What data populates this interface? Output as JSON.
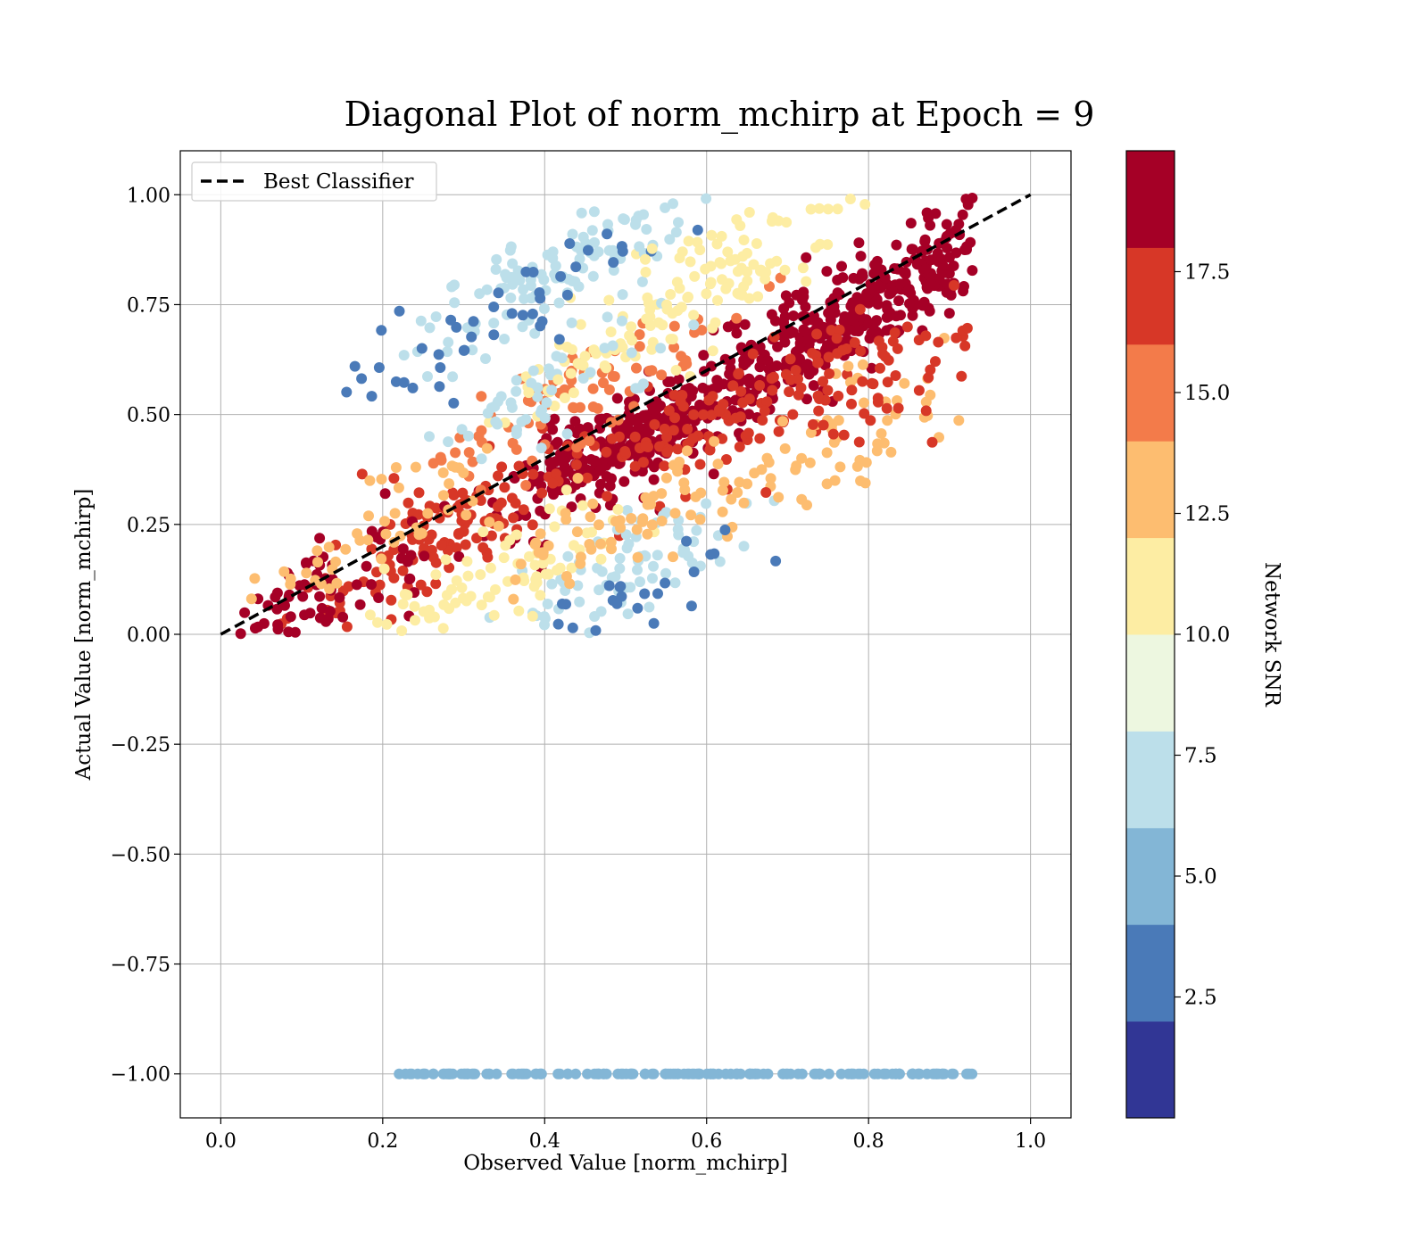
{
  "chart_data": {
    "type": "scatter",
    "title": "Diagonal Plot of norm_mchirp at Epoch = 9",
    "xlabel": "Observed Value [norm_mchirp]",
    "ylabel": "Actual Value [norm_mchirp]",
    "xlim": [
      -0.05,
      1.05
    ],
    "ylim": [
      -1.1,
      1.1
    ],
    "x_ticks": [
      "0.0",
      "0.2",
      "0.4",
      "0.6",
      "0.8",
      "1.0"
    ],
    "x_tick_values": [
      0.0,
      0.2,
      0.4,
      0.6,
      0.8,
      1.0
    ],
    "y_ticks": [
      "−1.00",
      "−0.75",
      "−0.50",
      "−0.25",
      "0.00",
      "0.25",
      "0.50",
      "0.75",
      "1.00"
    ],
    "y_tick_values": [
      -1.0,
      -0.75,
      -0.5,
      -0.25,
      0.0,
      0.25,
      0.5,
      0.75,
      1.0
    ],
    "grid": true,
    "legend": {
      "placement": "upper-left",
      "entries": [
        {
          "label": "Best Classifier",
          "style": "dashed",
          "color": "#000000"
        }
      ]
    },
    "reference_line": {
      "name": "Best Classifier",
      "x": [
        0.0,
        1.0
      ],
      "y": [
        0.0,
        1.0
      ],
      "style": "dashed",
      "color": "#000000"
    },
    "colorbar": {
      "label": "Network SNR",
      "range": [
        0,
        20
      ],
      "ticks": [
        "2.5",
        "5.0",
        "7.5",
        "10.0",
        "12.5",
        "15.0",
        "17.5"
      ],
      "tick_values": [
        2.5,
        5.0,
        7.5,
        10.0,
        12.5,
        15.0,
        17.5
      ],
      "bins": [
        {
          "from": 0,
          "to": 2,
          "color": "#313695"
        },
        {
          "from": 2,
          "to": 4,
          "color": "#4a7ab8"
        },
        {
          "from": 4,
          "to": 6,
          "color": "#83b6d6"
        },
        {
          "from": 6,
          "to": 8,
          "color": "#bcdfea"
        },
        {
          "from": 8,
          "to": 10,
          "color": "#edf7e0"
        },
        {
          "from": 10,
          "to": 12,
          "color": "#fdeda3"
        },
        {
          "from": 12,
          "to": 14,
          "color": "#fdbd70"
        },
        {
          "from": 14,
          "to": 16,
          "color": "#f37b4a"
        },
        {
          "from": 16,
          "to": 18,
          "color": "#d73727"
        },
        {
          "from": 18,
          "to": 20,
          "color": "#a50026"
        }
      ]
    },
    "series": [
      {
        "type": "cluster",
        "x": 0.52,
        "y": 0.45,
        "snr": 19.0,
        "count": 320
      },
      {
        "type": "cluster",
        "x": 0.28,
        "y": 0.24,
        "snr": 17.5,
        "count": 140
      },
      {
        "type": "cluster",
        "x": 0.78,
        "y": 0.72,
        "snr": 19.0,
        "count": 260
      },
      {
        "type": "cluster",
        "x": 0.88,
        "y": 0.87,
        "snr": 19.0,
        "count": 120
      },
      {
        "type": "cluster",
        "x": 0.1,
        "y": 0.07,
        "snr": 19.0,
        "count": 90
      },
      {
        "type": "cluster",
        "x": 0.62,
        "y": 0.5,
        "snr": 17.0,
        "count": 120
      },
      {
        "type": "cluster",
        "x": 0.45,
        "y": 0.55,
        "snr": 15.0,
        "count": 80
      },
      {
        "type": "cluster",
        "x": 0.55,
        "y": 0.72,
        "snr": 11.0,
        "count": 90
      },
      {
        "type": "cluster",
        "x": 0.42,
        "y": 0.82,
        "snr": 7.0,
        "count": 120
      },
      {
        "type": "cluster",
        "x": 0.4,
        "y": 0.55,
        "snr": 6.0,
        "count": 50
      },
      {
        "type": "cluster",
        "x": 0.5,
        "y": 0.16,
        "snr": 7.5,
        "count": 80
      },
      {
        "type": "cluster",
        "x": 0.34,
        "y": 0.12,
        "snr": 10.0,
        "count": 90
      },
      {
        "type": "cluster",
        "x": 0.55,
        "y": 0.3,
        "snr": 12.0,
        "count": 70
      },
      {
        "type": "cluster",
        "x": 0.78,
        "y": 0.45,
        "snr": 13.0,
        "count": 60
      },
      {
        "type": "cluster",
        "x": 0.85,
        "y": 0.6,
        "snr": 17.0,
        "count": 60
      },
      {
        "type": "cluster",
        "x": 0.36,
        "y": 0.74,
        "snr": 3.0,
        "count": 45
      },
      {
        "type": "cluster",
        "x": 0.5,
        "y": 0.05,
        "snr": 3.5,
        "count": 40
      },
      {
        "type": "cluster",
        "x": 0.18,
        "y": 0.22,
        "snr": 12.0,
        "count": 50
      },
      {
        "type": "cluster",
        "x": 0.65,
        "y": 0.88,
        "snr": 10.5,
        "count": 60
      },
      {
        "type": "line",
        "y": -1.0,
        "x_range": [
          0.22,
          0.93
        ],
        "snr": 5.0,
        "count": 160
      }
    ]
  }
}
